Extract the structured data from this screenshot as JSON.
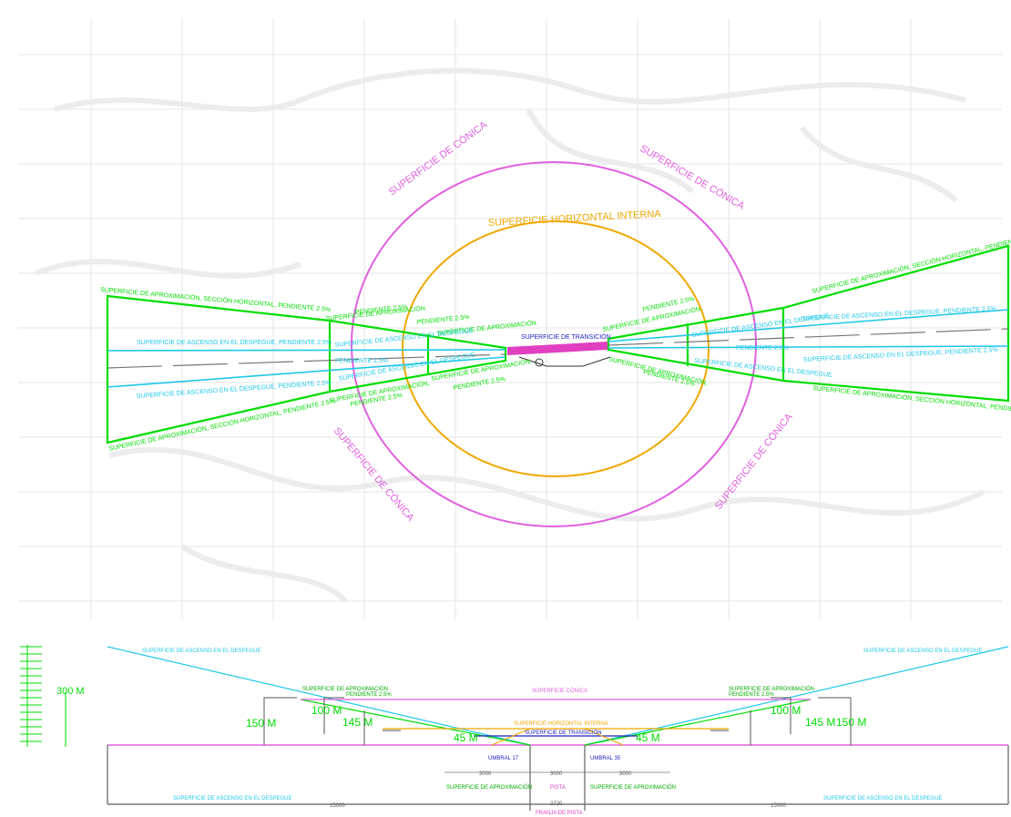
{
  "plan": {
    "conical_top_left": "SUPERFICIE DE CÓNICA",
    "conical_top_right": "SUPERFICIE DE CÓNICA",
    "conical_bottom_left": "SUPERFICIE DE CÓNICA",
    "conical_bottom_right": "SUPERFICIE DE CÓNICA",
    "horizontal_internal": "SUPERFICIE HORIZONTAL INTERNA",
    "transition": "SUPERFICIE DE TRANSICIÓN",
    "left_approach_top": "SUPERFICIE DE APROXIMACIÓN, SECCIÓN HORIZONTAL, PENDIENTE 2.5%",
    "left_approach_bottom": "SUPERFICIE DE APROXIMACIÓN, SECCIÓN HORIZONTAL, PENDIENTE 2.5%",
    "left_takeoff_top": "SUPERFICIE DE ASCENSO EN EL DESPEGUE, PENDIENTE 2.5%",
    "left_takeoff_bottom": "SUPERFICIE DE ASCENSO EN EL DESPEGUE, PENDIENTE 2.5%",
    "left_inner_approach_top": "SUPERFICIE DE APROXIMACIÓN",
    "left_inner_slope_top": "PENDIENTE 2.5%",
    "left_inner_approach_bottom": "SUPERFICIE DE APROXIMACIÓN,",
    "left_inner_slope_bottom": "PENDIENTE 2.5%",
    "left_near_approach_top": "SUPERFICIE DE APROXIMACIÓN",
    "left_near_slope_top": "PENDIENTE 2.5%",
    "left_near_approach_bottom": "SUPERFICIE DE APROXIMACIÓN,",
    "left_near_slope_bottom": "PENDIENTE 2.5%",
    "left_takeoff_inner_top": "SUPERFICIE DE ASCENSO EN EL DESPEGUE",
    "left_takeoff_inner_bottom": "SUPERFICIE DE ASCENSO EN EL DESPEGUE",
    "left_slope_mid": "PENDIENTE 2.5%",
    "right_approach_top": "SUPERFICIE DE APROXIMACIÓN, SECCIÓN HORIZONTAL, PENDIENTE 2.5%",
    "right_approach_bottom": "SUPERFICIE DE APROXIMACIÓN, SECCIÓN HORIZONTAL, PENDIENTE 2.5%",
    "right_takeoff_top": "SUPERFICIE DE ASCENSO EN EL DESPEGUE, PENDIENTE 2.5%",
    "right_takeoff_bottom": "SUPERFICIE DE ASCENSO EN EL DESPEGUE, PENDIENTE 2.5%",
    "right_inner_approach_top": "SUPERFICIE DE APROXIMACIÓN",
    "right_inner_slope_top": "PENDIENTE 2.5%",
    "right_inner_approach_bottom": "SUPERFICIE DE APROXIMACIÓN,",
    "right_inner_slope_bottom": "PENDIENTE 2.5%",
    "right_takeoff_inner_top": "SUPERFICIE DE ASCENSO EN EL DESPEGUE",
    "right_takeoff_inner_bottom": "SUPERFICIE DE ASCENSO EN EL DESPEGUE",
    "right_slope_mid": "PENDIENTE 2.5%"
  },
  "profile": {
    "scale_label": "300 M",
    "takeoff_left": "SUPERFICIE DE ASCENSO EN EL DESPEGUE",
    "takeoff_right": "SUPERFICIE DE ASCENSO EN EL DESPEGUE",
    "approach_left": "SUPERFICIE DE APROXIMACIÓN",
    "approach_left_slope": "PENDIENTE 2.5%",
    "approach_right": "SUPERFICIE DE APROXIMACIÓN",
    "approach_right_slope": "PENDIENTE 2.5%",
    "conical": "SUPERFICIE CÓNICA",
    "horizontal": "SUPERFICIE HORIZONTAL INTERNA",
    "transition": "SUPERFICIE DE TRANSICIÓN",
    "h150_left": "150 M",
    "h100_left": "100 M",
    "h145_left": "145 M",
    "h45_left": "45 M",
    "h45_right": "45 M",
    "h100_right": "100 M",
    "h145_right": "145 M",
    "h150_right": "150 M",
    "threshold_left": "UMBRAL 17",
    "threshold_right": "UMBRAL 35",
    "dim_3000_left": "3000",
    "dim_3000_mid": "3000",
    "dim_3000_right": "3000",
    "approach_base_left": "SUPERFICIE DE APROXIMACIÓN",
    "runway": "PISTA",
    "approach_base_right": "SUPERFICIE DE APROXIMACIÓN",
    "takeoff_base_left": "SUPERFICIE DE ASCENSO EN EL DESPEGUE",
    "takeoff_base_right": "SUPERFICIE DE ASCENSO EN EL DESPEGUE",
    "dim_15000_left": "15000",
    "dim_2720": "2720",
    "dim_15000_right": "15000",
    "runway_strip": "FRANJA DE PISTA"
  },
  "colors": {
    "conical": "#e060e0",
    "horizontal": "#f0a800",
    "approach": "#00dd00",
    "takeoff": "#20c8e8",
    "transition": "#2020c0",
    "runway": "#e040c0"
  }
}
